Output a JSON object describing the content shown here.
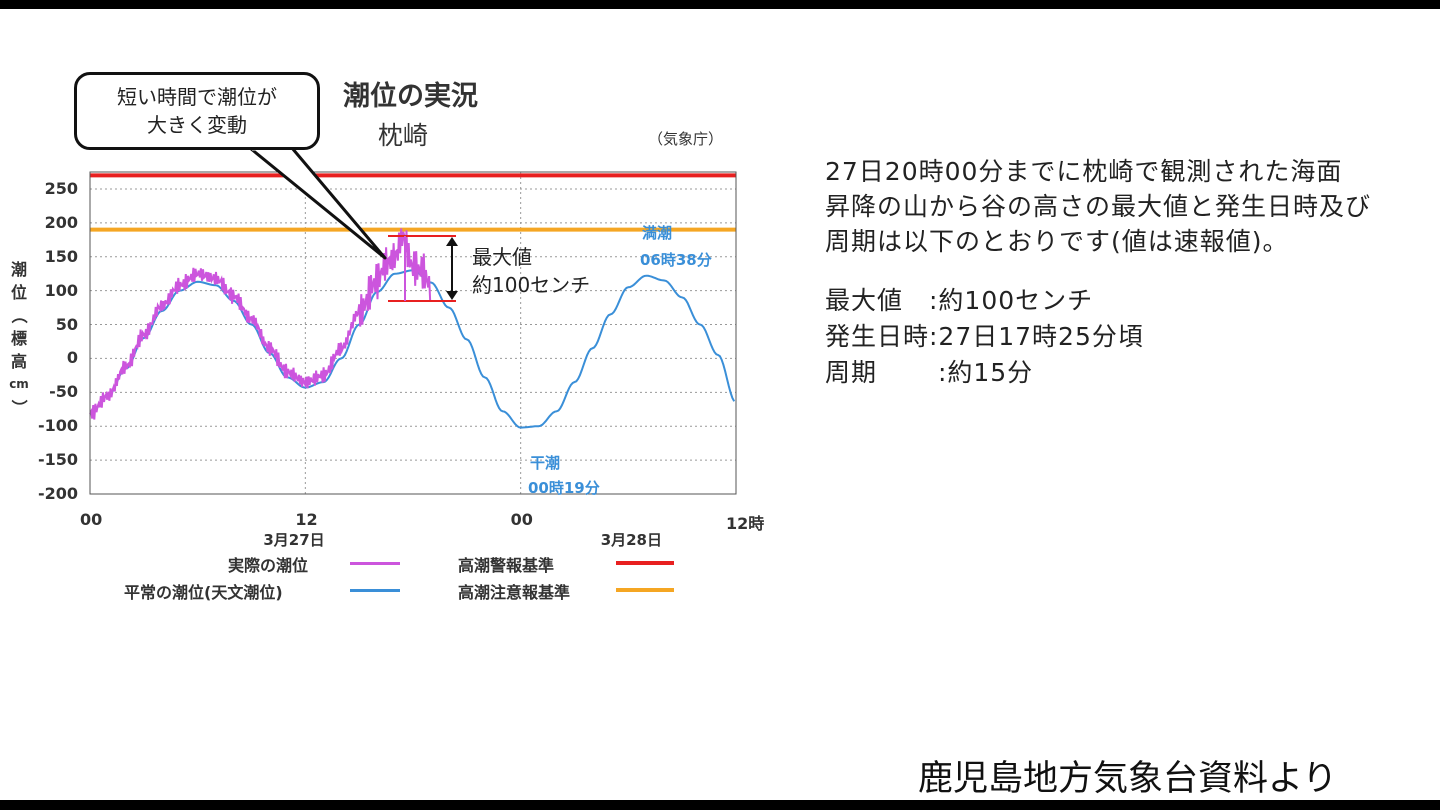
{
  "chart": {
    "title": "潮位の実況",
    "station": "枕崎",
    "agency": "（気象庁）",
    "callout": [
      "短い時間で潮位が",
      "大きく変動"
    ],
    "ylabel_chars": [
      "潮",
      "位",
      "（",
      "標",
      "高",
      "cm",
      "）"
    ],
    "max_annotation": [
      "最大値",
      "約100センチ"
    ],
    "high_tide": {
      "label": "満潮",
      "time": "06時38分"
    },
    "low_tide": {
      "label": "干潮",
      "time": "00時19分"
    },
    "legend": [
      {
        "label": "実際の潮位",
        "color": "#cc55dd"
      },
      {
        "label": "平常の潮位(天文潮位)",
        "color": "#3a8fd8"
      },
      {
        "label": "高潮警報基準",
        "color": "#e82020"
      },
      {
        "label": "高潮注意報基準",
        "color": "#f5a623"
      }
    ]
  },
  "chart_data": {
    "type": "line",
    "title": "潮位の実況",
    "ylabel": "潮位（標高cm）",
    "ylim": [
      -200,
      275
    ],
    "yticks": [
      250,
      200,
      150,
      100,
      50,
      0,
      -50,
      -100,
      -150,
      -200
    ],
    "xlim_hours": [
      0,
      36
    ],
    "xticks": [
      {
        "hour": 0,
        "label": "00"
      },
      {
        "hour": 12,
        "label": "12"
      },
      {
        "hour": 24,
        "label": "00"
      },
      {
        "hour": 36,
        "label": "12時"
      }
    ],
    "xdates": [
      {
        "hour": 12,
        "label": "3月27日"
      },
      {
        "hour": 30.8,
        "label": "3月28日"
      }
    ],
    "thresholds": {
      "warning": 270,
      "advisory": 190
    },
    "series": [
      {
        "name": "平常の潮位(天文潮位)",
        "x": [
          0,
          1,
          2,
          3,
          4,
          5,
          6,
          7,
          8,
          9,
          10,
          11,
          12,
          13,
          14,
          15,
          16,
          17,
          18,
          19,
          20,
          21,
          22,
          23,
          24,
          25,
          26,
          27,
          28,
          29,
          30,
          31,
          32,
          33,
          34,
          35,
          36
        ],
        "values": [
          -82,
          -55,
          -15,
          30,
          70,
          100,
          113,
          108,
          85,
          50,
          8,
          -28,
          -43,
          -35,
          0,
          50,
          98,
          125,
          130,
          112,
          75,
          28,
          -28,
          -78,
          -102,
          -100,
          -78,
          -35,
          15,
          65,
          105,
          122,
          115,
          90,
          50,
          5,
          -65
        ]
      },
      {
        "name": "実際の潮位",
        "x": [
          0,
          1,
          2,
          3,
          4,
          5,
          6,
          7,
          8,
          9,
          10,
          11,
          12,
          13,
          14,
          15,
          16,
          16.5,
          17,
          17.42,
          18,
          18.5,
          19
        ],
        "values": [
          -82,
          -55,
          -12,
          35,
          78,
          108,
          125,
          118,
          92,
          58,
          15,
          -20,
          -35,
          -25,
          15,
          68,
          115,
          140,
          150,
          180,
          135,
          130,
          105
        ]
      }
    ]
  },
  "right_text": {
    "lines": [
      "27日20時00分までに枕崎で観測された海面",
      "昇降の山から谷の高さの最大値と発生日時及び",
      "周期は以下のとおりです(値は速報値)。"
    ],
    "details": [
      "最大値　:約100センチ",
      "発生日時:27日17時25分頃",
      "周期　　 :約15分"
    ]
  },
  "source": "鹿児島地方気象台資料より"
}
